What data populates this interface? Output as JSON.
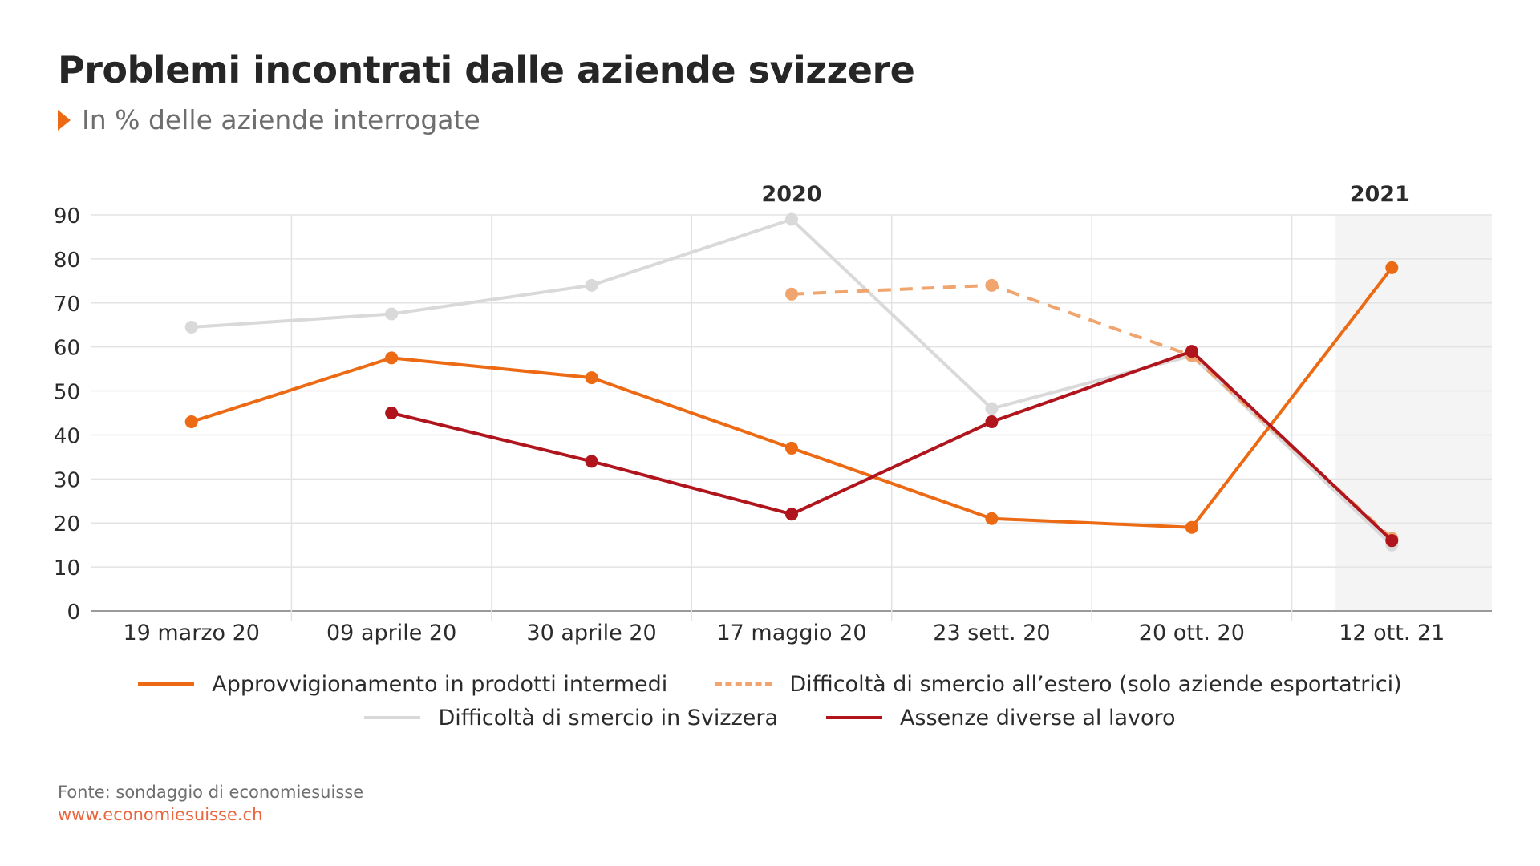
{
  "title": "Problemi incontrati dalle aziende svizzere",
  "subtitle": "In % delle aziende interrogate",
  "source": {
    "text": "Fonte: sondaggio di economiesuisse",
    "link": "www.economiesuisse.ch"
  },
  "chart_data": {
    "type": "line",
    "categories": [
      "19 marzo 20",
      "09 aprile 20",
      "30 aprile 20",
      "17 maggio 20",
      "23 sett. 20",
      "20 ott. 20",
      "12 ott. 21"
    ],
    "year_labels": [
      {
        "label": "2020",
        "at_category": "17 maggio 20"
      },
      {
        "label": "2021",
        "at_category": "12 ott. 21"
      }
    ],
    "highlight_band": {
      "from_category": "12 ott. 21",
      "color": "#f4f4f4"
    },
    "ylim": [
      0,
      90
    ],
    "yticks": [
      0,
      10,
      20,
      30,
      40,
      50,
      60,
      70,
      80,
      90
    ],
    "grid": true,
    "legend_position": "bottom",
    "series": [
      {
        "name": "Approvvigionamento in prodotti intermedi",
        "color": "#ec6a14",
        "style": "solid",
        "values": [
          43,
          57.5,
          53,
          37,
          21,
          19,
          78
        ]
      },
      {
        "name": "Difficoltà di smercio all’estero (solo aziende esportatrici)",
        "color": "#f0a46e",
        "style": "dashed",
        "values": [
          null,
          null,
          null,
          72,
          74,
          58,
          16.5
        ]
      },
      {
        "name": "Difficoltà di smercio in Svizzera",
        "color": "#d9d9d9",
        "style": "solid",
        "values": [
          64.5,
          67.5,
          74,
          89,
          46,
          58,
          15
        ]
      },
      {
        "name": "Assenze diverse al lavoro",
        "color": "#b0141c",
        "style": "solid",
        "values": [
          null,
          45,
          34,
          22,
          43,
          59,
          16
        ]
      }
    ]
  }
}
